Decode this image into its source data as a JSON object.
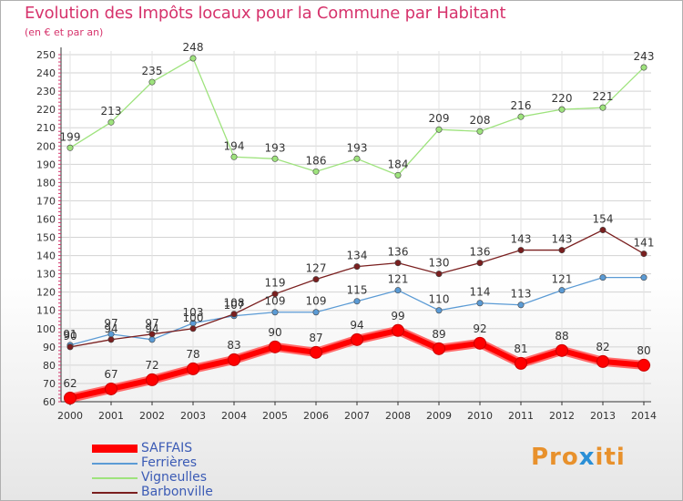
{
  "header": {
    "title": "Evolution des Impôts locaux pour la Commune par Habitant",
    "subtitle": "(en € et par an)"
  },
  "brand": {
    "prefix": "Pro",
    "x": "x",
    "suffix": "iti"
  },
  "chart_data": {
    "type": "line",
    "title": "Evolution des Impôts locaux pour la Commune par Habitant",
    "subtitle": "(en € et par an)",
    "xlabel": "",
    "ylabel": "",
    "x": [
      "2000",
      "2001",
      "2002",
      "2003",
      "2004",
      "2005",
      "2006",
      "2007",
      "2008",
      "2009",
      "2010",
      "2011",
      "2012",
      "2013",
      "2014"
    ],
    "ylim": [
      60,
      250
    ],
    "yticks": [
      60,
      70,
      80,
      90,
      100,
      110,
      120,
      130,
      140,
      150,
      160,
      170,
      180,
      190,
      200,
      210,
      220,
      230,
      240,
      250
    ],
    "grid": true,
    "legend_position": "bottom-left",
    "series": [
      {
        "name": "SAFFAIS",
        "color": "#ff0000",
        "emphasis": true,
        "values": [
          62,
          67,
          72,
          78,
          83,
          90,
          87,
          94,
          99,
          89,
          92,
          81,
          88,
          82,
          80
        ]
      },
      {
        "name": "Ferrières",
        "color": "#5b9bd5",
        "emphasis": false,
        "values": [
          91,
          97,
          94,
          103,
          107,
          109,
          109,
          115,
          121,
          110,
          114,
          113,
          121,
          128,
          128
        ]
      },
      {
        "name": "Vigneulles",
        "color": "#9ee37d",
        "emphasis": false,
        "values": [
          199,
          213,
          235,
          248,
          194,
          193,
          186,
          193,
          184,
          209,
          208,
          216,
          220,
          221,
          243
        ]
      },
      {
        "name": "Barbonville",
        "color": "#7a1f1f",
        "emphasis": false,
        "values": [
          90,
          94,
          97,
          100,
          108,
          119,
          127,
          134,
          136,
          130,
          136,
          143,
          143,
          154,
          141
        ]
      }
    ],
    "data_labels": {
      "SAFFAIS": [
        62,
        67,
        72,
        78,
        83,
        90,
        87,
        94,
        99,
        89,
        92,
        81,
        88,
        82,
        80
      ],
      "Ferrières": [
        91,
        97,
        94,
        103,
        107,
        109,
        109,
        115,
        121,
        110,
        114,
        113,
        121,
        128,
        128
      ],
      "Vigneulles": [
        199,
        213,
        235,
        248,
        194,
        193,
        186,
        193,
        184,
        209,
        208,
        216,
        220,
        221,
        243
      ],
      "Barbonville": [
        90,
        94,
        97,
        100,
        108,
        119,
        127,
        134,
        136,
        130,
        136,
        143,
        143,
        154,
        141
      ]
    },
    "label_series_order": [
      "Barbonville",
      "Ferrières",
      "Vigneulles",
      "SAFFAIS"
    ],
    "omitted_labels": {
      "Ferrières": [
        13,
        14
      ],
      "Barbonville": []
    }
  }
}
